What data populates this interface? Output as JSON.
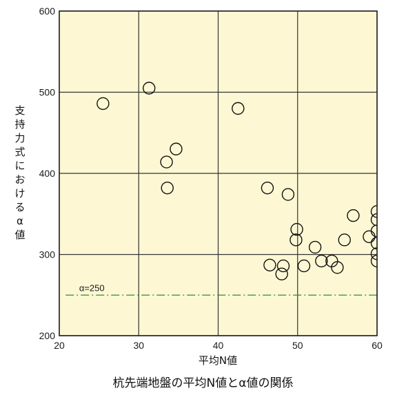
{
  "chart_data": {
    "type": "scatter",
    "title": "杭先端地盤の平均N値とα値の関係",
    "xlabel": "平均N値",
    "ylabel": "支持力式におけるα値",
    "xlim": [
      20,
      60
    ],
    "ylim": [
      200,
      600
    ],
    "xticks": [
      20,
      30,
      40,
      50,
      60
    ],
    "yticks": [
      200,
      300,
      400,
      500,
      600
    ],
    "grid": true,
    "background_color": "#fdf8d3",
    "marker": "open-circle",
    "reference_line": {
      "y": 250,
      "label": "α=250",
      "color": "#2e8b2e",
      "style": "dash-dot"
    },
    "points": [
      {
        "x": 25.5,
        "y": 486
      },
      {
        "x": 31.3,
        "y": 505
      },
      {
        "x": 33.5,
        "y": 414
      },
      {
        "x": 34.7,
        "y": 430
      },
      {
        "x": 33.6,
        "y": 382
      },
      {
        "x": 42.5,
        "y": 480
      },
      {
        "x": 46.2,
        "y": 382
      },
      {
        "x": 48.8,
        "y": 374
      },
      {
        "x": 49.9,
        "y": 331
      },
      {
        "x": 49.8,
        "y": 318
      },
      {
        "x": 52.2,
        "y": 309
      },
      {
        "x": 46.5,
        "y": 287
      },
      {
        "x": 48.2,
        "y": 286
      },
      {
        "x": 48.0,
        "y": 276
      },
      {
        "x": 50.8,
        "y": 286
      },
      {
        "x": 53.0,
        "y": 292
      },
      {
        "x": 54.3,
        "y": 292
      },
      {
        "x": 55.0,
        "y": 284
      },
      {
        "x": 55.9,
        "y": 318
      },
      {
        "x": 57.0,
        "y": 348
      },
      {
        "x": 59.0,
        "y": 322
      },
      {
        "x": 60.0,
        "y": 353
      },
      {
        "x": 60.0,
        "y": 343
      },
      {
        "x": 60.0,
        "y": 329
      },
      {
        "x": 60.0,
        "y": 314
      },
      {
        "x": 60.0,
        "y": 301
      },
      {
        "x": 60.0,
        "y": 292
      }
    ]
  }
}
